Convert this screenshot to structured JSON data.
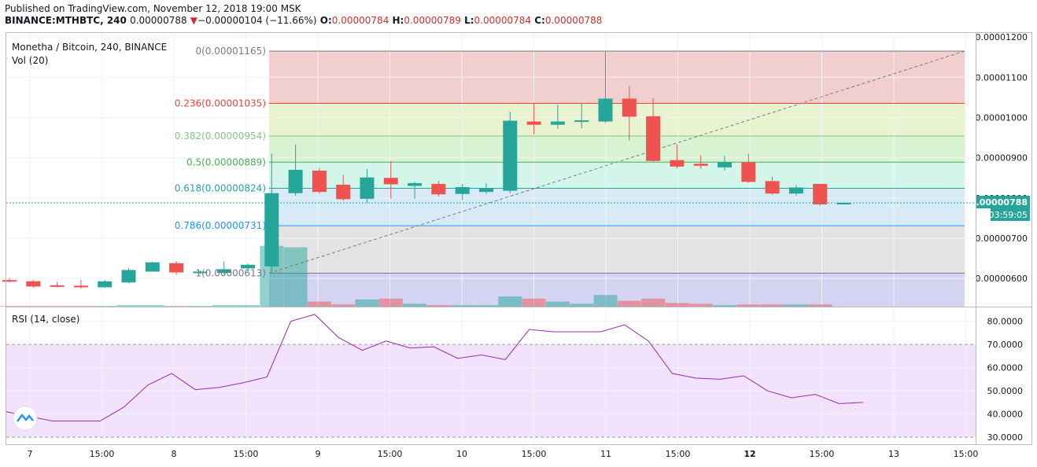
{
  "header": {
    "published": "Published on TradingView.com, November 12, 2018 19:00 MSK",
    "symbol": "BINANCE:MTHBTC, 240",
    "last": "0.00000788",
    "change_arrow": "▼",
    "change": "−0.00000104 (−11.66%)",
    "o_label": "O:",
    "o": "0.00000784",
    "h_label": "H:",
    "h": "0.00000789",
    "l_label": "L:",
    "l": "0.00000784",
    "c_label": "C:",
    "c": "0.00000788"
  },
  "legend": {
    "title": "Monetha / Bitcoin, 240, BINANCE",
    "volume": "Vol (20)",
    "rsi": "RSI (14, close)"
  },
  "price_badge": "0.00000788",
  "countdown_badge": "03:59:05",
  "colors": {
    "up": "#26a69a",
    "down": "#ef5350",
    "rsi_line": "#9c27b0",
    "rsi_band": "#f3e2fb",
    "fib_0": "#f2cfcf",
    "fib_0236": "#eaf3cf",
    "fib_0382": "#d8f3d2",
    "fib_05": "#d4f5ea",
    "fib_0618": "#d7ebf7",
    "fib_0786": "#e3e3e3",
    "fib_1": "#d5d3f2"
  },
  "chart_data": [
    {
      "type": "candlestick",
      "title": "Monetha / Bitcoin, 240, BINANCE",
      "ylim": [
        5.3e-06,
        1.21e-05
      ],
      "y_ticks": [
        "0.00001200",
        "0.00001100",
        "0.00001000",
        "0.00000900",
        "0.00000800",
        "0.00000700",
        "0.00000600"
      ],
      "x_ticks": [
        "7",
        "15:00",
        "8",
        "15:00",
        "9",
        "15:00",
        "10",
        "15:00",
        "11",
        "15:00",
        "12",
        "15:00",
        "13",
        "15:00"
      ],
      "candles": [
        {
          "o": 5.96e-06,
          "h": 6.01e-06,
          "l": 5.9e-06,
          "c": 5.92e-06
        },
        {
          "o": 5.93e-06,
          "h": 5.96e-06,
          "l": 5.77e-06,
          "c": 5.8e-06
        },
        {
          "o": 5.83e-06,
          "h": 5.91e-06,
          "l": 5.78e-06,
          "c": 5.8e-06
        },
        {
          "o": 5.82e-06,
          "h": 5.96e-06,
          "l": 5.75e-06,
          "c": 5.78e-06
        },
        {
          "o": 5.78e-06,
          "h": 5.96e-06,
          "l": 5.76e-06,
          "c": 5.93e-06
        },
        {
          "o": 5.9e-06,
          "h": 6.25e-06,
          "l": 5.88e-06,
          "c": 6.21e-06
        },
        {
          "o": 6.17e-06,
          "h": 6.42e-06,
          "l": 6.17e-06,
          "c": 6.4e-06
        },
        {
          "o": 6.38e-06,
          "h": 6.43e-06,
          "l": 6.1e-06,
          "c": 6.15e-06
        },
        {
          "o": 6.14e-06,
          "h": 6.2e-06,
          "l": 6.11e-06,
          "c": 6.17e-06
        },
        {
          "o": 6.14e-06,
          "h": 6.42e-06,
          "l": 6.11e-06,
          "c": 6.23e-06
        },
        {
          "o": 6.25e-06,
          "h": 6.37e-06,
          "l": 6.17e-06,
          "c": 6.34e-06
        },
        {
          "o": 6.3e-06,
          "h": 9.1e-06,
          "l": 6.12e-06,
          "c": 8.12e-06
        },
        {
          "o": 8.12e-06,
          "h": 9.33e-06,
          "l": 8.06e-06,
          "c": 8.7e-06
        },
        {
          "o": 8.68e-06,
          "h": 8.75e-06,
          "l": 8.1e-06,
          "c": 8.15e-06
        },
        {
          "o": 8.33e-06,
          "h": 8.58e-06,
          "l": 7.93e-06,
          "c": 7.97e-06
        },
        {
          "o": 7.98e-06,
          "h": 8.72e-06,
          "l": 7.88e-06,
          "c": 8.51e-06
        },
        {
          "o": 8.5e-06,
          "h": 8.92e-06,
          "l": 7.98e-06,
          "c": 8.34e-06
        },
        {
          "o": 8.3e-06,
          "h": 8.4e-06,
          "l": 7.98e-06,
          "c": 8.37e-06
        },
        {
          "o": 8.35e-06,
          "h": 8.42e-06,
          "l": 8.04e-06,
          "c": 8.09e-06
        },
        {
          "o": 8.1e-06,
          "h": 8.35e-06,
          "l": 7.95e-06,
          "c": 8.27e-06
        },
        {
          "o": 8.15e-06,
          "h": 8.37e-06,
          "l": 8.1e-06,
          "c": 8.24e-06
        },
        {
          "o": 8.18e-06,
          "h": 1.014e-05,
          "l": 8.12e-06,
          "c": 9.92e-06
        },
        {
          "o": 9.9e-06,
          "h": 1.037e-05,
          "l": 9.58e-06,
          "c": 9.82e-06
        },
        {
          "o": 9.82e-06,
          "h": 1.032e-05,
          "l": 9.72e-06,
          "c": 9.9e-06
        },
        {
          "o": 9.9e-06,
          "h": 1.035e-05,
          "l": 9.73e-06,
          "c": 9.93e-06
        },
        {
          "o": 9.9e-06,
          "h": 1.165e-05,
          "l": 9.87e-06,
          "c": 1.047e-05
        },
        {
          "o": 1.047e-05,
          "h": 1.078e-05,
          "l": 9.43e-06,
          "c": 1.002e-05
        },
        {
          "o": 1.003e-05,
          "h": 1.048e-05,
          "l": 8.9e-06,
          "c": 8.92e-06
        },
        {
          "o": 8.94e-06,
          "h": 9.33e-06,
          "l": 8.74e-06,
          "c": 8.78e-06
        },
        {
          "o": 8.85e-06,
          "h": 9.06e-06,
          "l": 8.73e-06,
          "c": 8.8e-06
        },
        {
          "o": 8.76e-06,
          "h": 9.05e-06,
          "l": 8.68e-06,
          "c": 8.89e-06
        },
        {
          "o": 8.89e-06,
          "h": 9.1e-06,
          "l": 8.38e-06,
          "c": 8.4e-06
        },
        {
          "o": 8.42e-06,
          "h": 8.53e-06,
          "l": 8.08e-06,
          "c": 8.11e-06
        },
        {
          "o": 8.11e-06,
          "h": 8.32e-06,
          "l": 8.06e-06,
          "c": 8.26e-06
        },
        {
          "o": 8.35e-06,
          "h": 8.35e-06,
          "l": 7.81e-06,
          "c": 7.84e-06
        },
        {
          "o": 7.84e-06,
          "h": 7.89e-06,
          "l": 7.84e-06,
          "c": 7.88e-06
        }
      ],
      "volume_pct": [
        1,
        1,
        1,
        1,
        1,
        2,
        2,
        1,
        1,
        2,
        2,
        84,
        82,
        7,
        3,
        10,
        11,
        4,
        2,
        2,
        2,
        14,
        11,
        7,
        4,
        16,
        8,
        11,
        5,
        4,
        2,
        3,
        3,
        3,
        3,
        0
      ],
      "fibonacci": [
        {
          "label": "0(0.00001165)",
          "price": 1.165e-05,
          "color": "#787b86"
        },
        {
          "label": "0.236(0.00001035)",
          "price": 1.035e-05,
          "color": "#f44336"
        },
        {
          "label": "0.382(0.00000954)",
          "price": 9.54e-06,
          "color": "#81c784"
        },
        {
          "label": "0.5(0.00000889)",
          "price": 8.89e-06,
          "color": "#4caf50"
        },
        {
          "label": "0.618(0.00000824)",
          "price": 8.24e-06,
          "color": "#26a69a"
        },
        {
          "label": "0.786(0.00000731)",
          "price": 7.31e-06,
          "color": "#2196f3"
        },
        {
          "label": "1(0.00000613)",
          "price": 6.13e-06,
          "color": "#787b86"
        }
      ]
    },
    {
      "type": "line",
      "title": "RSI (14, close)",
      "ylim": [
        27,
        86
      ],
      "y_ticks": [
        "80.0000",
        "70.0000",
        "60.0000",
        "50.0000",
        "40.0000",
        "30.0000"
      ],
      "band": [
        30,
        70
      ],
      "values": [
        41,
        null,
        37,
        null,
        37,
        43,
        52.5,
        57.5,
        50.5,
        51.5,
        53.5,
        56,
        80,
        83,
        73,
        67.5,
        71.5,
        68.5,
        69,
        64,
        65.5,
        63.5,
        76.5,
        75.5,
        75.5,
        75.5,
        78.5,
        71.5,
        57.5,
        55.5,
        55,
        56.5,
        50,
        47,
        48.5,
        44.5,
        45
      ]
    }
  ]
}
